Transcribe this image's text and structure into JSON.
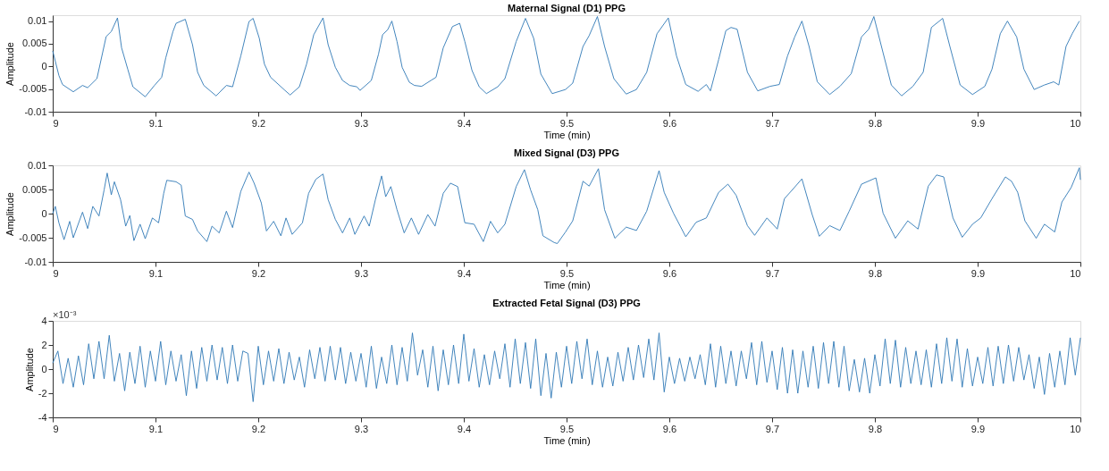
{
  "chart_data": [
    {
      "type": "line",
      "title": "Maternal Signal (D1) PPG",
      "xlabel": "Time (min)",
      "ylabel": "Amplitude",
      "xlim": [
        9,
        10
      ],
      "xticks": [
        9,
        9.1,
        9.2,
        9.3,
        9.4,
        9.5,
        9.6,
        9.7,
        9.8,
        9.9,
        10
      ],
      "ylim": [
        -0.01,
        0.0113
      ],
      "yticks": [
        -0.01,
        -0.005,
        0,
        0.005,
        0.01
      ],
      "grid": false,
      "marker": "none",
      "line_style": "solid",
      "series": [
        {
          "color": "#2f78b5",
          "x": [
            9,
            9.006,
            9.0095,
            9.02,
            9.029,
            9.034,
            9.043,
            9.052,
            9.057,
            9.063,
            9.067,
            9.073,
            9.078,
            9.09,
            9.099,
            9.106,
            9.11,
            9.117,
            9.12,
            9.129,
            9.136,
            9.141,
            9.147,
            9.159,
            9.169,
            9.175,
            9.183,
            9.191,
            9.195,
            9.201,
            9.206,
            9.212,
            9.226,
            9.231,
            9.24,
            9.247,
            9.254,
            9.263,
            9.268,
            9.275,
            9.282,
            9.289,
            9.296,
            9.299,
            9.31,
            9.317,
            9.321,
            9.326,
            9.33,
            9.335,
            9.34,
            9.347,
            9.352,
            9.359,
            9.368,
            9.373,
            9.38,
            9.389,
            9.396,
            9.401,
            9.408,
            9.415,
            9.422,
            9.433,
            9.44,
            9.451,
            9.46,
            9.468,
            9.475,
            9.486,
            9.499,
            9.506,
            9.516,
            9.522,
            9.53,
            9.537,
            9.546,
            9.558,
            9.568,
            9.578,
            9.588,
            9.599,
            9.607,
            9.616,
            9.628,
            9.636,
            9.64,
            9.648,
            9.655,
            9.66,
            9.666,
            9.676,
            9.686,
            9.698,
            9.707,
            9.715,
            9.722,
            9.729,
            9.736,
            9.744,
            9.756,
            9.766,
            9.777,
            9.787,
            9.794,
            9.799,
            9.808,
            9.816,
            9.826,
            9.837,
            9.847,
            9.855,
            9.866,
            9.873,
            9.883,
            9.895,
            9.907,
            9.914,
            9.922,
            9.929,
            9.938,
            9.945,
            9.955,
            9.965,
            9.974,
            9.979,
            9.986,
            9.992,
            9.999
          ],
          "values": [
            0.0034,
            -0.002,
            -0.004,
            -0.0056,
            -0.0042,
            -0.0047,
            -0.0027,
            0.0066,
            0.0077,
            0.0107,
            0.0041,
            -0.0006,
            -0.0045,
            -0.0067,
            -0.0042,
            -0.0024,
            0.0019,
            0.0077,
            0.0095,
            0.0104,
            0.0048,
            -0.0013,
            -0.0042,
            -0.0065,
            -0.0042,
            -0.0045,
            0.0023,
            0.0099,
            0.0106,
            0.0062,
            0.0005,
            -0.0024,
            -0.0053,
            -0.0063,
            -0.0045,
            0.0005,
            0.007,
            0.0107,
            0.0048,
            -0.0002,
            -0.0031,
            -0.0042,
            -0.0045,
            -0.0053,
            -0.0031,
            0.0027,
            0.007,
            0.0081,
            0.01,
            0.0055,
            -0.0002,
            -0.0035,
            -0.0042,
            -0.0044,
            -0.0031,
            -0.0024,
            0.0041,
            0.0088,
            0.0095,
            0.0055,
            -0.0009,
            -0.0045,
            -0.006,
            -0.0045,
            -0.0027,
            0.0055,
            0.0106,
            0.0062,
            -0.0017,
            -0.006,
            -0.0051,
            -0.0037,
            0.0044,
            0.0068,
            0.011,
            0.0044,
            -0.0027,
            -0.0061,
            -0.0051,
            -0.0013,
            0.0072,
            0.0107,
            0.0023,
            -0.004,
            -0.0055,
            -0.004,
            -0.0054,
            0.0015,
            0.0079,
            0.0086,
            0.0082,
            -0.0013,
            -0.0054,
            -0.0044,
            -0.004,
            0.0023,
            0.0065,
            0.01,
            0.0044,
            -0.0034,
            -0.0062,
            -0.0044,
            -0.0016,
            0.0065,
            0.0082,
            0.011,
            0.003,
            -0.0041,
            -0.0065,
            -0.0044,
            -0.0013,
            0.0086,
            0.0106,
            0.0044,
            -0.0041,
            -0.0062,
            -0.0044,
            -0.0006,
            0.0072,
            0.01,
            0.0065,
            -0.0006,
            -0.0051,
            -0.0041,
            -0.0034,
            -0.0041,
            0.0044,
            0.0072,
            0.01
          ]
        }
      ]
    },
    {
      "type": "line",
      "title": "Mixed Signal (D3) PPG",
      "xlabel": "Time (min)",
      "ylabel": "Amplitude",
      "xlim": [
        9,
        10
      ],
      "xticks": [
        9,
        9.1,
        9.2,
        9.3,
        9.4,
        9.5,
        9.6,
        9.7,
        9.8,
        9.9,
        10
      ],
      "ylim": [
        -0.01,
        0.01
      ],
      "yticks": [
        -0.01,
        -0.005,
        0,
        0.005,
        0.01
      ],
      "grid": false,
      "marker": "none",
      "line_style": "solid",
      "series": [
        {
          "color": "#2f78b5",
          "x": [
            9,
            9.0025,
            9.006,
            9.011,
            9.0165,
            9.02,
            9.029,
            9.034,
            9.039,
            9.045,
            9.05,
            9.053,
            9.057,
            9.06,
            9.066,
            9.071,
            9.075,
            9.079,
            9.085,
            9.09,
            9.097,
            9.103,
            9.108,
            9.111,
            9.12,
            9.125,
            9.129,
            9.136,
            9.141,
            9.15,
            9.155,
            9.162,
            9.169,
            9.175,
            9.183,
            9.191,
            9.196,
            9.203,
            9.208,
            9.215,
            9.222,
            9.227,
            9.233,
            9.243,
            9.249,
            9.256,
            9.263,
            9.268,
            9.275,
            9.282,
            9.289,
            9.294,
            9.303,
            9.308,
            9.314,
            9.32,
            9.324,
            9.329,
            9.335,
            9.342,
            9.349,
            9.356,
            9.365,
            9.372,
            9.38,
            9.387,
            9.394,
            9.401,
            9.41,
            9.419,
            9.426,
            9.433,
            9.44,
            9.451,
            9.459,
            9.465,
            9.472,
            9.477,
            9.488,
            9.491,
            9.499,
            9.506,
            9.516,
            9.522,
            9.531,
            9.537,
            9.547,
            9.558,
            9.568,
            9.578,
            9.59,
            9.595,
            9.604,
            9.616,
            9.626,
            9.636,
            9.648,
            9.657,
            9.665,
            9.676,
            9.683,
            9.695,
            9.705,
            9.712,
            9.72,
            9.729,
            9.739,
            9.746,
            9.756,
            9.766,
            9.775,
            9.787,
            9.801,
            9.808,
            9.82,
            9.832,
            9.842,
            9.852,
            9.86,
            9.867,
            9.876,
            9.885,
            9.895,
            9.903,
            9.914,
            9.927,
            9.933,
            9.939,
            9.946,
            9.957,
            9.965,
            9.975,
            9.982,
            9.991,
            9.999,
            10
          ],
          "values": [
            0,
            0.0015,
            -0.0019,
            -0.0054,
            -0.0016,
            -0.005,
            0.0003,
            -0.0031,
            0.0015,
            -0.0005,
            0.0049,
            0.0084,
            0.0039,
            0.0066,
            0.0029,
            -0.0026,
            -0.0004,
            -0.0056,
            -0.0022,
            -0.0052,
            -0.0009,
            -0.0019,
            0.0042,
            0.0069,
            0.0066,
            0.0059,
            -0.0005,
            -0.0012,
            -0.0036,
            -0.0058,
            -0.0026,
            -0.004,
            0.0005,
            -0.0029,
            0.0046,
            0.0086,
            0.0063,
            0.0022,
            -0.0036,
            -0.0016,
            -0.0046,
            -0.0009,
            -0.0043,
            -0.0019,
            0.0042,
            0.0071,
            0.0082,
            0.0029,
            -0.0012,
            -0.004,
            -0.0009,
            -0.0043,
            -0.0005,
            -0.0026,
            0.0029,
            0.0078,
            0.0035,
            0.0056,
            0.0008,
            -0.004,
            -0.0009,
            -0.0043,
            -0.0002,
            -0.0026,
            0.0042,
            0.0063,
            0.0056,
            -0.0019,
            -0.0022,
            -0.0058,
            -0.0016,
            -0.004,
            -0.0022,
            0.0056,
            0.0091,
            0.0049,
            0.0008,
            -0.0046,
            -0.006,
            -0.0062,
            -0.0038,
            -0.0015,
            0.0067,
            0.0057,
            0.0093,
            0.0008,
            -0.0051,
            -0.0028,
            -0.0035,
            0.0005,
            0.0089,
            0.0044,
            0.0001,
            -0.0048,
            -0.0018,
            -0.0009,
            0.0044,
            0.0061,
            0.0038,
            -0.0025,
            -0.0045,
            -0.0009,
            -0.0032,
            0.0031,
            0.005,
            0.0072,
            -0.0002,
            -0.0047,
            -0.0025,
            -0.0035,
            0.0005,
            0.0061,
            0.0074,
            0.0001,
            -0.0051,
            -0.0015,
            -0.0032,
            0.0057,
            0.008,
            0.0076,
            -0.0009,
            -0.0049,
            -0.0022,
            -0.0009,
            0.0031,
            0.0076,
            0.0067,
            0.0044,
            -0.0015,
            -0.0051,
            -0.0022,
            -0.0038,
            0.0024,
            0.0054,
            0.0095,
            0.007
          ]
        }
      ]
    },
    {
      "type": "line",
      "title": "Extracted Fetal Signal (D3) PPG",
      "xlabel": "Time (min)",
      "ylabel": "Amplitude",
      "annotations": [
        "×10⁻³"
      ],
      "xlim": [
        9,
        10
      ],
      "xticks": [
        9,
        9.1,
        9.2,
        9.3,
        9.4,
        9.5,
        9.6,
        9.7,
        9.8,
        9.9,
        10
      ],
      "ylim": [
        -4,
        4
      ],
      "yticks": [
        -4,
        -2,
        0,
        2,
        4
      ],
      "grid": false,
      "marker": "none",
      "line_style": "solid",
      "series": [
        {
          "color": "#2f78b5",
          "x": [
            9,
            9.005,
            9.01,
            9.015,
            9.02,
            9.025,
            9.03,
            9.035,
            9.04,
            9.045,
            9.05,
            9.055,
            9.06,
            9.065,
            9.07,
            9.075,
            9.08,
            9.085,
            9.09,
            9.095,
            9.1,
            9.105,
            9.11,
            9.115,
            9.12,
            9.125,
            9.13,
            9.135,
            9.14,
            9.145,
            9.15,
            9.155,
            9.16,
            9.165,
            9.17,
            9.175,
            9.18,
            9.185,
            9.19,
            9.195,
            9.2,
            9.205,
            9.21,
            9.215,
            9.22,
            9.225,
            9.23,
            9.235,
            9.24,
            9.245,
            9.25,
            9.255,
            9.26,
            9.265,
            9.27,
            9.275,
            9.28,
            9.285,
            9.29,
            9.295,
            9.3,
            9.305,
            9.31,
            9.315,
            9.32,
            9.325,
            9.33,
            9.335,
            9.34,
            9.345,
            9.35,
            9.355,
            9.36,
            9.365,
            9.37,
            9.375,
            9.38,
            9.385,
            9.39,
            9.395,
            9.4,
            9.405,
            9.41,
            9.415,
            9.42,
            9.425,
            9.43,
            9.435,
            9.44,
            9.445,
            9.45,
            9.455,
            9.46,
            9.465,
            9.47,
            9.475,
            9.48,
            9.485,
            9.49,
            9.495,
            9.5,
            9.505,
            9.51,
            9.515,
            9.52,
            9.525,
            9.53,
            9.535,
            9.54,
            9.545,
            9.55,
            9.555,
            9.56,
            9.565,
            9.57,
            9.575,
            9.58,
            9.585,
            9.59,
            9.595,
            9.6,
            9.605,
            9.61,
            9.615,
            9.62,
            9.625,
            9.63,
            9.635,
            9.64,
            9.645,
            9.65,
            9.655,
            9.66,
            9.665,
            9.67,
            9.675,
            9.68,
            9.685,
            9.69,
            9.695,
            9.7,
            9.705,
            9.71,
            9.715,
            9.72,
            9.725,
            9.73,
            9.735,
            9.74,
            9.745,
            9.75,
            9.755,
            9.76,
            9.765,
            9.77,
            9.775,
            9.78,
            9.785,
            9.79,
            9.795,
            9.8,
            9.805,
            9.81,
            9.815,
            9.82,
            9.825,
            9.83,
            9.835,
            9.84,
            9.845,
            9.85,
            9.855,
            9.86,
            9.865,
            9.87,
            9.875,
            9.88,
            9.885,
            9.89,
            9.895,
            9.9,
            9.905,
            9.91,
            9.915,
            9.92,
            9.925,
            9.93,
            9.935,
            9.94,
            9.945,
            9.95,
            9.955,
            9.96,
            9.965,
            9.97,
            9.975,
            9.98,
            9.985,
            9.99,
            9.995,
            10
          ],
          "values": [
            0.5,
            1.5,
            -1.2,
            0.9,
            -1.5,
            1.1,
            -1.3,
            2.1,
            -0.8,
            2.3,
            -0.8,
            2.8,
            -1.0,
            1.3,
            -1.8,
            1.4,
            -1.2,
            1.9,
            -1.5,
            1.5,
            -1.0,
            2.3,
            -1.3,
            1.5,
            -1.0,
            1.2,
            -2.2,
            1.5,
            -1.6,
            1.8,
            -1.0,
            2.0,
            -0.9,
            1.8,
            -1.2,
            2.0,
            -1.0,
            1.5,
            1.3,
            -2.7,
            1.9,
            -1.3,
            1.5,
            -1.0,
            1.7,
            -1.2,
            1.4,
            -0.9,
            1.0,
            -1.5,
            1.6,
            -0.8,
            1.8,
            -1.0,
            1.9,
            -0.9,
            1.8,
            -1.2,
            1.4,
            -1.0,
            1.3,
            -1.5,
            1.9,
            -1.6,
            1.0,
            -1.2,
            2.0,
            -1.3,
            1.8,
            -1.0,
            3.0,
            -0.5,
            1.6,
            -1.5,
            1.9,
            -1.8,
            1.6,
            -1.3,
            2.0,
            -1.2,
            2.9,
            -1.0,
            1.7,
            -1.5,
            1.2,
            -1.3,
            1.5,
            -0.8,
            2.1,
            -1.5,
            2.5,
            -1.2,
            2.2,
            -1.6,
            2.5,
            -2.2,
            1.3,
            -2.4,
            1.4,
            -1.5,
            1.9,
            -1.2,
            2.3,
            -0.8,
            2.5,
            -1.3,
            1.5,
            -1.5,
            1.0,
            -1.4,
            1.4,
            -1.0,
            1.8,
            -0.9,
            2.0,
            -0.7,
            2.5,
            -0.9,
            3.0,
            -1.9,
            1.0,
            -1.2,
            0.9,
            -1.0,
            1.0,
            -0.8,
            1.2,
            -1.3,
            2.1,
            -1.5,
            1.9,
            -1.2,
            1.5,
            -1.4,
            1.5,
            -0.8,
            2.2,
            -1.3,
            2.3,
            -1.1,
            1.5,
            -1.7,
            1.8,
            -2.0,
            1.6,
            -2.0,
            1.5,
            -1.5,
            1.9,
            -1.6,
            2.2,
            -1.2,
            2.3,
            -1.5,
            1.9,
            -1.8,
            0.8,
            -1.9,
            0.9,
            -2.0,
            1.2,
            -1.4,
            2.5,
            -1.2,
            2.4,
            -1.5,
            1.8,
            -1.2,
            1.5,
            -1.3,
            1.6,
            -1.5,
            2.1,
            -1.2,
            2.6,
            -1.0,
            2.5,
            -1.5,
            1.7,
            -1.4,
            1.0,
            -1.2,
            1.8,
            -1.4,
            1.9,
            -1.2,
            2.0,
            -1.0,
            1.8,
            -0.9,
            1.2,
            -1.6,
            1.0,
            -2.1,
            1.3,
            -1.5,
            1.5,
            -1.3,
            2.6,
            -0.5,
            2.6
          ]
        }
      ]
    }
  ]
}
